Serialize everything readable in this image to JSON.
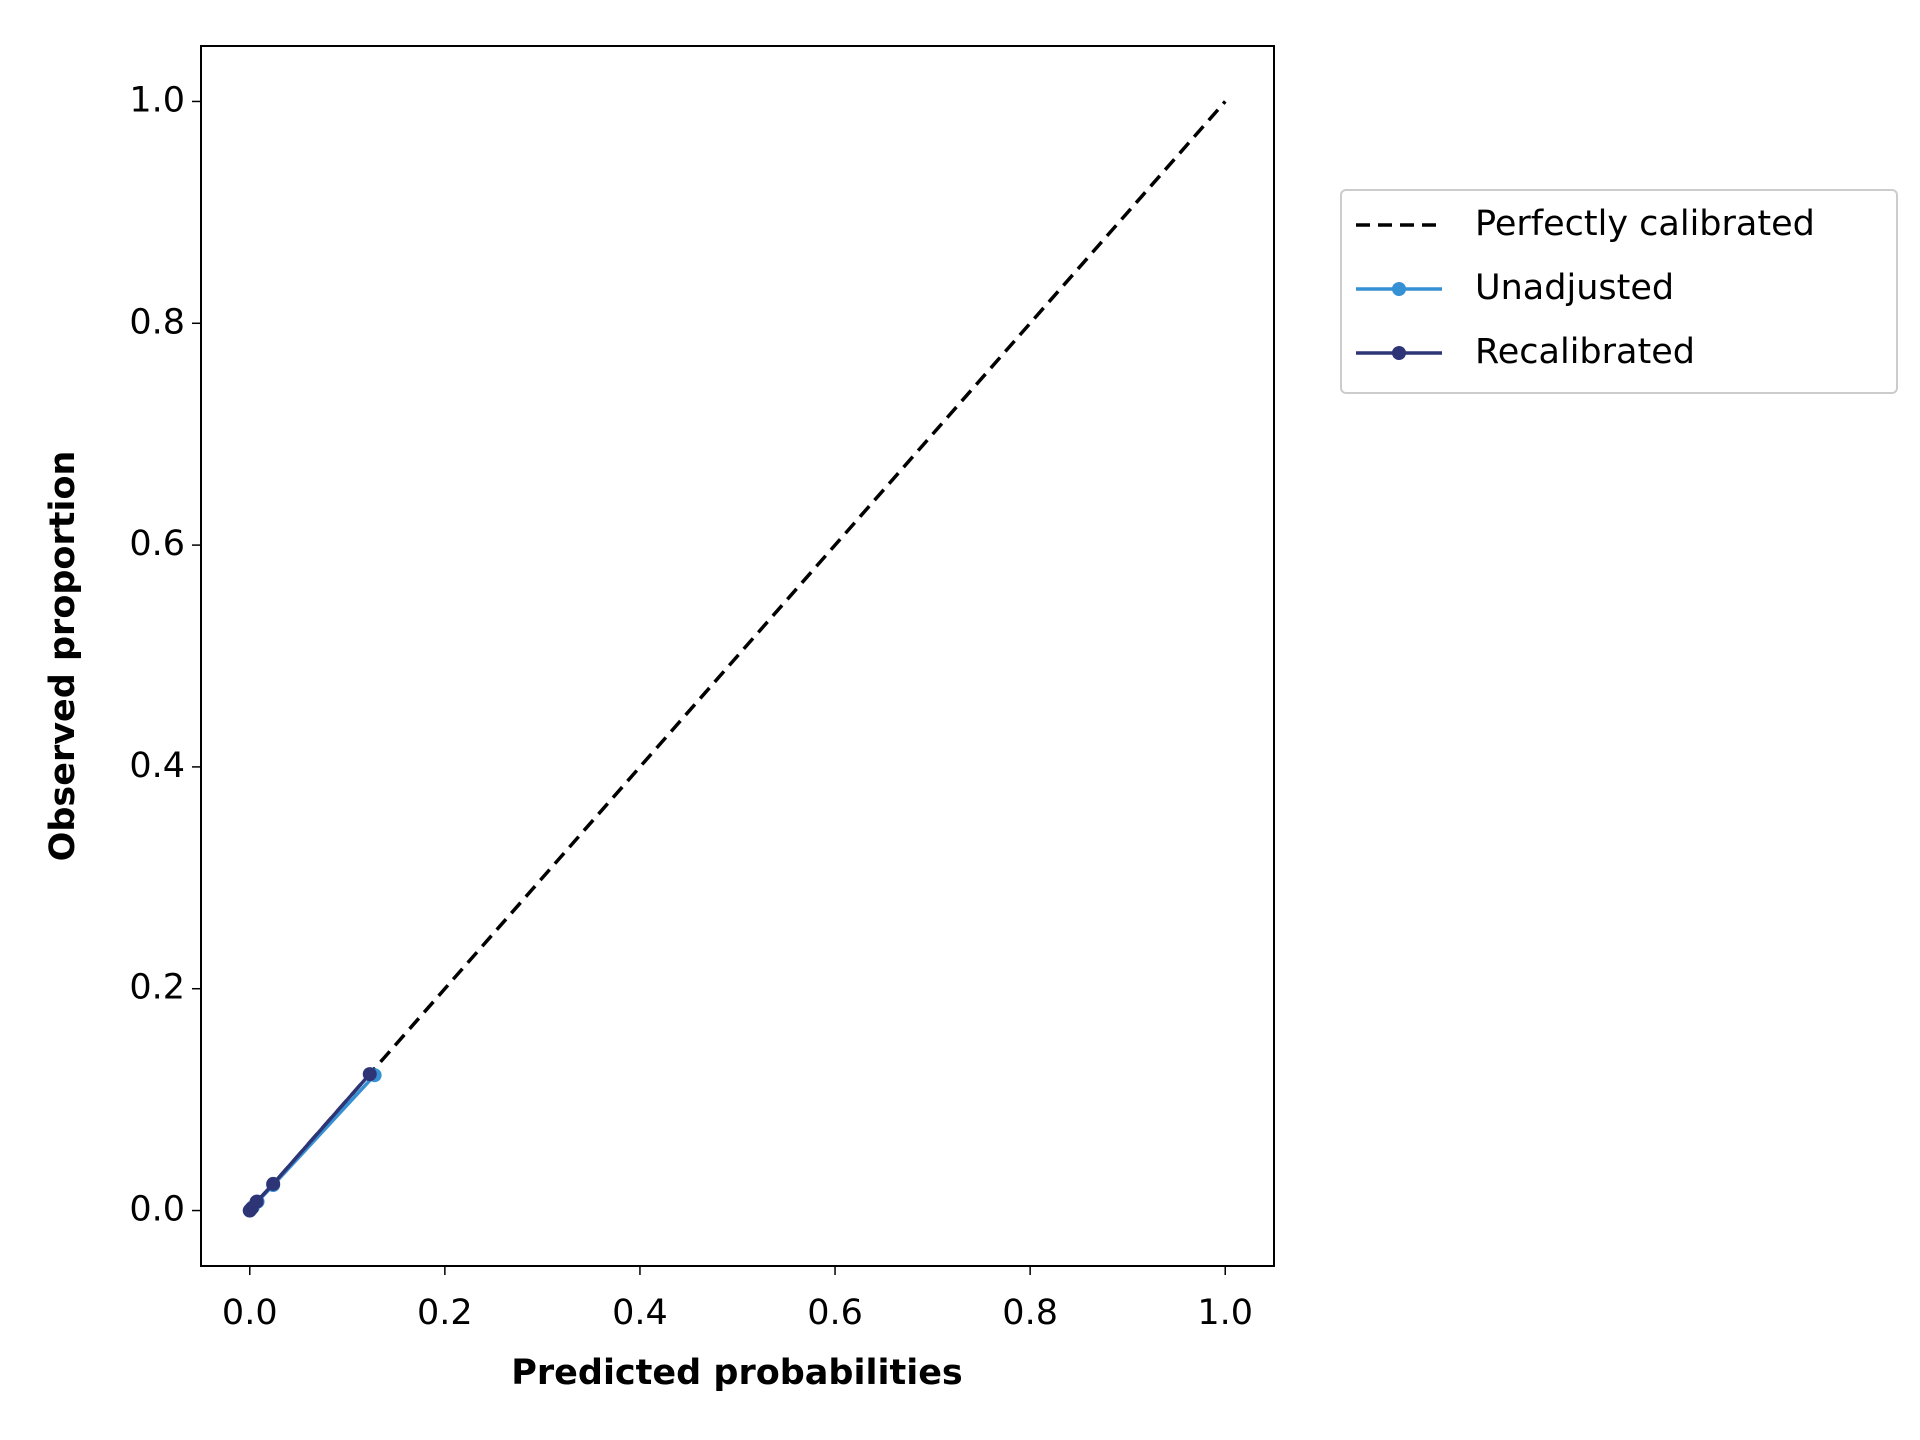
{
  "chart_data": {
    "type": "line",
    "xlabel": "Predicted probabilities",
    "ylabel": "Observed proportion",
    "xlim": [
      -0.05,
      1.05
    ],
    "ylim": [
      -0.05,
      1.05
    ],
    "xticks": [
      {
        "value": 0,
        "label": "0.0"
      },
      0.2,
      0.4,
      0.6,
      0.8,
      {
        "value": 1,
        "label": "1.0"
      }
    ],
    "yticks": [
      {
        "value": 0,
        "label": "0.0"
      },
      0.2,
      0.4,
      0.6,
      0.8,
      {
        "value": 1,
        "label": "1.0"
      }
    ],
    "grid": false,
    "legend": "outside right",
    "series": [
      {
        "name": "Perfectly calibrated",
        "color": "#000000",
        "linestyle": "dashed",
        "marker": false,
        "x": [
          0,
          1
        ],
        "values": [
          0,
          1
        ]
      },
      {
        "name": "Unadjusted",
        "color": "#3690d4",
        "linestyle": "solid",
        "marker": true,
        "x": [
          0,
          0.003,
          0.008,
          0.024,
          0.128
        ],
        "values": [
          0,
          0.003,
          0.008,
          0.023,
          0.122
        ]
      },
      {
        "name": "Recalibrated",
        "color": "#2e3577",
        "linestyle": "solid",
        "marker": true,
        "x": [
          0,
          0.002,
          0.007,
          0.024,
          0.123
        ],
        "values": [
          0,
          0.002,
          0.008,
          0.024,
          0.123
        ]
      }
    ]
  }
}
